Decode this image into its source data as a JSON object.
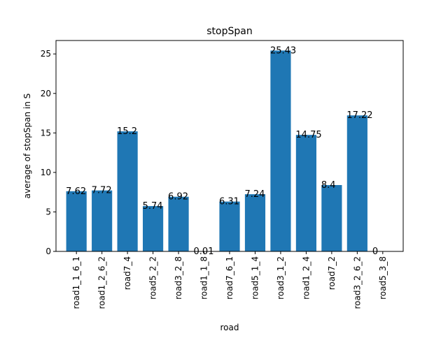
{
  "chart_data": {
    "type": "bar",
    "title": "stopSpan",
    "xlabel": "road",
    "ylabel": "average of stopSpan in S",
    "categories": [
      "road1_1_6_1",
      "road1_2_6_2",
      "road7_4",
      "road5_2_2",
      "road3_2_8",
      "road1_1_8",
      "road7_6_1",
      "road5_1_4",
      "road3_1_2",
      "road1_2_4",
      "road7_2",
      "road3_2_6_2",
      "road5_3_8"
    ],
    "values": [
      7.62,
      7.72,
      15.2,
      5.74,
      6.92,
      0.01,
      6.31,
      7.24,
      25.43,
      14.75,
      8.4,
      17.22,
      0
    ],
    "value_labels": [
      "7.62",
      "7.72",
      "15.2",
      "5.74",
      "6.92",
      "0.01",
      "6.31",
      "7.24",
      "25.43",
      "14.75",
      "8.4",
      "17.22",
      "0"
    ],
    "ylim": [
      0,
      26.7
    ],
    "yticks": [
      0,
      5,
      10,
      15,
      20,
      25
    ],
    "ytick_labels": [
      "0",
      "5",
      "10",
      "15",
      "20",
      "25"
    ],
    "grid": false,
    "bar_color": "#1f77b4"
  }
}
